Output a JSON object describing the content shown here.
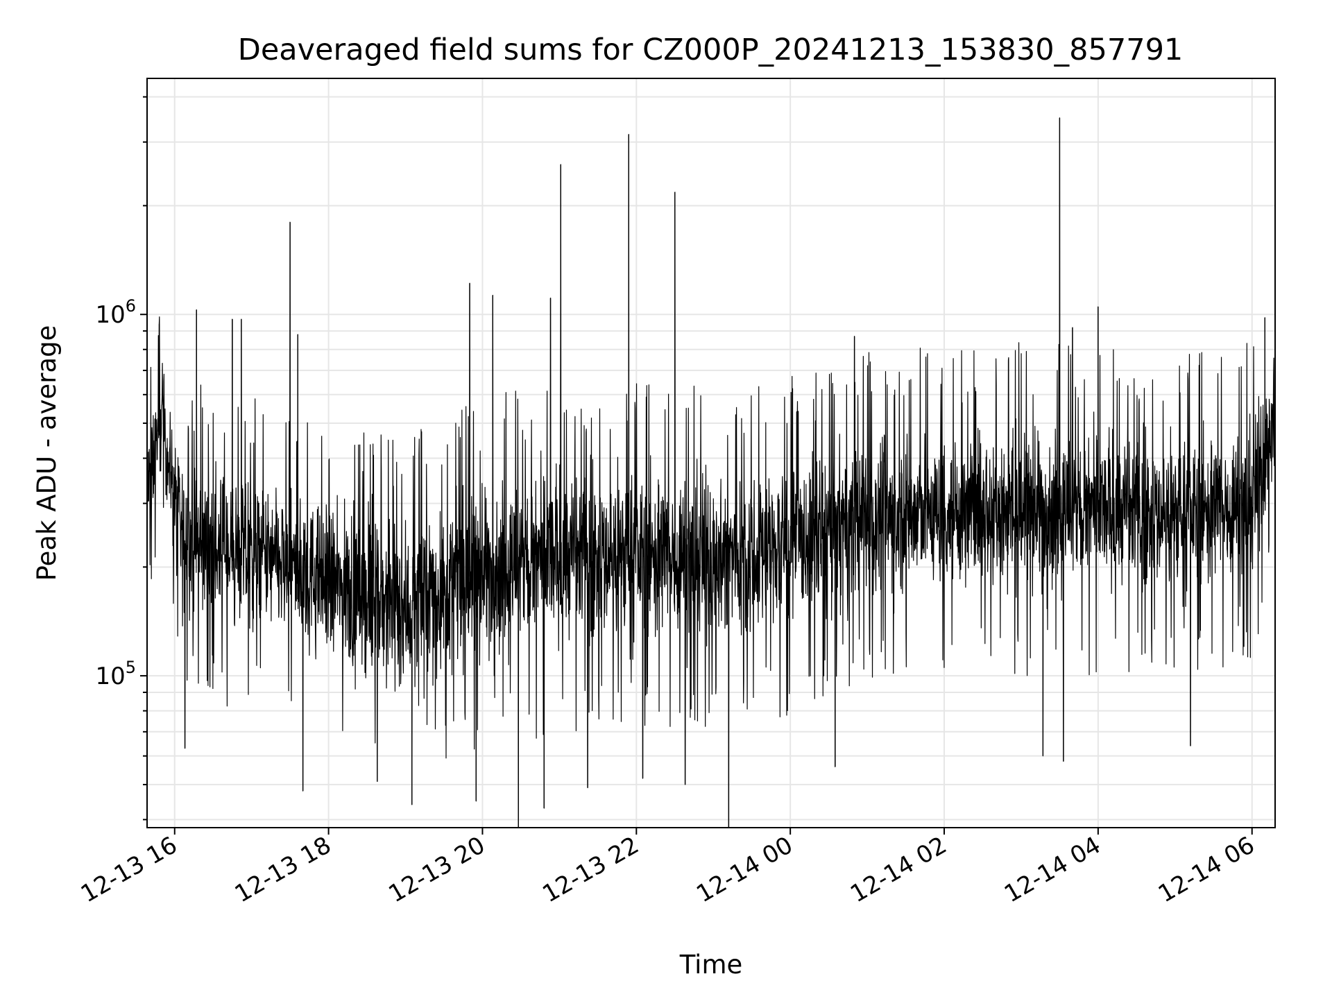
{
  "chart_data": {
    "type": "line",
    "title": "Deaveraged field sums for CZ000P_20241213_153830_857791",
    "xlabel": "Time",
    "ylabel": "Peak ADU - average",
    "yscale": "log",
    "xlim": [
      "2024-12-13T15:38:30",
      "2024-12-14T06:18:00"
    ],
    "ylim": [
      38000,
      4500000
    ],
    "grid": true,
    "line_color": "#000000",
    "grid_color": "#e6e6e6",
    "x_ticks": [
      {
        "value": "2024-12-13T16:00",
        "label": "12-13 16"
      },
      {
        "value": "2024-12-13T18:00",
        "label": "12-13 18"
      },
      {
        "value": "2024-12-13T20:00",
        "label": "12-13 20"
      },
      {
        "value": "2024-12-13T22:00",
        "label": "12-13 22"
      },
      {
        "value": "2024-12-14T00:00",
        "label": "12-14 00"
      },
      {
        "value": "2024-12-14T02:00",
        "label": "12-14 02"
      },
      {
        "value": "2024-12-14T04:00",
        "label": "12-14 04"
      },
      {
        "value": "2024-12-14T06:00",
        "label": "12-14 06"
      }
    ],
    "y_ticks": [
      {
        "value": 100000,
        "base": "10",
        "exp": "5"
      },
      {
        "value": 1000000,
        "base": "10",
        "exp": "6"
      }
    ],
    "series_trend": [
      {
        "t": "2024-12-13T15:38:30",
        "median": 320000,
        "lo": 200000,
        "hi": 520000
      },
      {
        "t": "2024-12-13T15:50",
        "median": 500000,
        "lo": 330000,
        "hi": 850000
      },
      {
        "t": "2024-12-13T16:05",
        "median": 230000,
        "lo": 120000,
        "hi": 480000
      },
      {
        "t": "2024-12-13T17:00",
        "median": 200000,
        "lo": 110000,
        "hi": 420000
      },
      {
        "t": "2024-12-13T18:00",
        "median": 170000,
        "lo": 90000,
        "hi": 360000
      },
      {
        "t": "2024-12-13T19:00",
        "median": 140000,
        "lo": 70000,
        "hi": 330000
      },
      {
        "t": "2024-12-13T20:00",
        "median": 200000,
        "lo": 90000,
        "hi": 420000
      },
      {
        "t": "2024-12-13T21:00",
        "median": 230000,
        "lo": 95000,
        "hi": 470000
      },
      {
        "t": "2024-12-13T22:00",
        "median": 240000,
        "lo": 100000,
        "hi": 470000
      },
      {
        "t": "2024-12-13T23:00",
        "median": 240000,
        "lo": 100000,
        "hi": 450000
      },
      {
        "t": "2024-12-14T00:00",
        "median": 270000,
        "lo": 110000,
        "hi": 480000
      },
      {
        "t": "2024-12-14T01:00",
        "median": 310000,
        "lo": 130000,
        "hi": 560000
      },
      {
        "t": "2024-12-14T02:00",
        "median": 320000,
        "lo": 140000,
        "hi": 580000
      },
      {
        "t": "2024-12-14T03:00",
        "median": 330000,
        "lo": 140000,
        "hi": 600000
      },
      {
        "t": "2024-12-14T04:00",
        "median": 320000,
        "lo": 140000,
        "hi": 580000
      },
      {
        "t": "2024-12-14T05:00",
        "median": 310000,
        "lo": 140000,
        "hi": 560000
      },
      {
        "t": "2024-12-14T06:00",
        "median": 330000,
        "lo": 150000,
        "hi": 600000
      },
      {
        "t": "2024-12-14T06:18:00",
        "median": 600000,
        "lo": 300000,
        "hi": 950000
      }
    ],
    "peaks": [
      {
        "t": "2024-12-13T15:48",
        "value": 940000
      },
      {
        "t": "2024-12-13T16:17",
        "value": 1030000
      },
      {
        "t": "2024-12-13T16:45",
        "value": 970000
      },
      {
        "t": "2024-12-13T16:52",
        "value": 970000
      },
      {
        "t": "2024-12-13T17:30",
        "value": 1800000
      },
      {
        "t": "2024-12-13T17:36",
        "value": 880000
      },
      {
        "t": "2024-12-13T19:50",
        "value": 1220000
      },
      {
        "t": "2024-12-13T20:08",
        "value": 1130000
      },
      {
        "t": "2024-12-13T20:53",
        "value": 1110000
      },
      {
        "t": "2024-12-13T21:01",
        "value": 2600000
      },
      {
        "t": "2024-12-13T21:54",
        "value": 3150000
      },
      {
        "t": "2024-12-13T22:30",
        "value": 2180000
      },
      {
        "t": "2024-12-14T00:50",
        "value": 870000
      },
      {
        "t": "2024-12-14T03:30",
        "value": 3500000
      },
      {
        "t": "2024-12-14T03:40",
        "value": 920000
      },
      {
        "t": "2024-12-14T04:00",
        "value": 1050000
      },
      {
        "t": "2024-12-14T06:10",
        "value": 980000
      }
    ],
    "dips": [
      {
        "t": "2024-12-13T16:08",
        "value": 63000
      },
      {
        "t": "2024-12-13T17:40",
        "value": 48000
      },
      {
        "t": "2024-12-13T18:38",
        "value": 51000
      },
      {
        "t": "2024-12-13T19:05",
        "value": 44000
      },
      {
        "t": "2024-12-13T19:55",
        "value": 45000
      },
      {
        "t": "2024-12-13T20:28",
        "value": 33000
      },
      {
        "t": "2024-12-13T20:48",
        "value": 43000
      },
      {
        "t": "2024-12-13T21:22",
        "value": 49000
      },
      {
        "t": "2024-12-13T22:05",
        "value": 52000
      },
      {
        "t": "2024-12-13T22:38",
        "value": 50000
      },
      {
        "t": "2024-12-13T23:12",
        "value": 37000
      },
      {
        "t": "2024-12-14T00:35",
        "value": 56000
      },
      {
        "t": "2024-12-14T03:17",
        "value": 60000
      },
      {
        "t": "2024-12-14T03:33",
        "value": 58000
      },
      {
        "t": "2024-12-14T05:12",
        "value": 64000
      }
    ]
  }
}
